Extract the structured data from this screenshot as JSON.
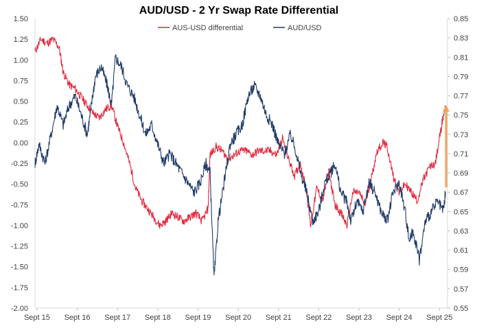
{
  "chart_data": {
    "type": "line",
    "title": "AUD/USD - 2 Yr Swap Rate Differential",
    "xlabel": "",
    "ylabel": "",
    "y2label": "",
    "x_ticks": [
      "Sept 15",
      "Sept 16",
      "Sept 17",
      "Sept 18",
      "Sept 19",
      "Sept 20",
      "Sept 21",
      "Sept 22",
      "Sept 23",
      "Sept 24",
      "Sept 25"
    ],
    "x_range": [
      2015.7,
      2025.95
    ],
    "ylim_left": [
      -2.0,
      1.5
    ],
    "left_ticks": [
      "1.50",
      "1.25",
      "1.00",
      "0.75",
      "0.50",
      "0.25",
      "0.00",
      "-0.25",
      "-0.50",
      "-0.75",
      "-1.00",
      "-1.25",
      "-1.50",
      "-1.75",
      "-2.00"
    ],
    "ylim_right": [
      0.55,
      0.85
    ],
    "right_ticks": [
      "0.85",
      "0.83",
      "0.81",
      "0.79",
      "0.77",
      "0.75",
      "0.73",
      "0.71",
      "0.69",
      "0.67",
      "0.65",
      "0.63",
      "0.61",
      "0.59",
      "0.57",
      "0.55"
    ],
    "legend_position": "top-center",
    "grid": false,
    "series": [
      {
        "name": "AUS-USD differential",
        "axis": "left",
        "color": "#e0283c",
        "x": [
          2015.7,
          2015.85,
          2016.0,
          2016.15,
          2016.3,
          2016.4,
          2016.55,
          2016.7,
          2016.85,
          2017.0,
          2017.15,
          2017.3,
          2017.45,
          2017.6,
          2017.75,
          2017.9,
          2018.05,
          2018.2,
          2018.35,
          2018.5,
          2018.65,
          2018.8,
          2018.95,
          2019.1,
          2019.25,
          2019.4,
          2019.55,
          2019.7,
          2019.85,
          2020.0,
          2020.05,
          2020.2,
          2020.35,
          2020.5,
          2020.65,
          2020.8,
          2020.95,
          2021.1,
          2021.25,
          2021.4,
          2021.55,
          2021.7,
          2021.85,
          2022.0,
          2022.15,
          2022.3,
          2022.45,
          2022.55,
          2022.7,
          2022.85,
          2023.0,
          2023.15,
          2023.3,
          2023.45,
          2023.6,
          2023.75,
          2023.9,
          2024.05,
          2024.2,
          2024.35,
          2024.45,
          2024.6,
          2024.75,
          2024.9,
          2025.05,
          2025.2,
          2025.35,
          2025.5,
          2025.65,
          2025.8,
          2025.9
        ],
        "values": [
          1.1,
          1.25,
          1.2,
          1.25,
          1.15,
          0.85,
          0.7,
          0.65,
          0.55,
          0.45,
          0.35,
          0.3,
          0.4,
          0.45,
          0.2,
          0.0,
          -0.25,
          -0.55,
          -0.7,
          -0.8,
          -0.9,
          -1.0,
          -0.95,
          -0.85,
          -0.9,
          -0.95,
          -0.9,
          -0.85,
          -0.95,
          -0.8,
          -0.15,
          -0.05,
          -0.1,
          -0.2,
          -0.15,
          -0.1,
          -0.1,
          -0.15,
          -0.1,
          -0.1,
          -0.1,
          -0.15,
          0.05,
          -0.2,
          -0.4,
          -0.25,
          -0.6,
          -1.0,
          -0.55,
          -0.7,
          -0.35,
          -0.75,
          -0.85,
          -1.0,
          -0.6,
          -0.6,
          -0.75,
          -0.45,
          -0.1,
          0.0,
          -0.05,
          -0.4,
          -0.6,
          -0.5,
          -0.6,
          -0.7,
          -0.45,
          -0.3,
          -0.25,
          0.2,
          0.45
        ]
      },
      {
        "name": "AUD/USD",
        "axis": "right",
        "color": "#1f3a68",
        "x": [
          2015.7,
          2015.8,
          2015.95,
          2016.1,
          2016.25,
          2016.4,
          2016.55,
          2016.7,
          2016.85,
          2017.0,
          2017.1,
          2017.2,
          2017.35,
          2017.5,
          2017.6,
          2017.7,
          2017.85,
          2018.0,
          2018.15,
          2018.3,
          2018.45,
          2018.6,
          2018.75,
          2018.9,
          2019.05,
          2019.2,
          2019.35,
          2019.5,
          2019.65,
          2019.8,
          2019.95,
          2020.05,
          2020.15,
          2020.25,
          2020.4,
          2020.55,
          2020.7,
          2020.85,
          2021.0,
          2021.15,
          2021.3,
          2021.45,
          2021.6,
          2021.75,
          2021.9,
          2022.05,
          2022.2,
          2022.3,
          2022.45,
          2022.6,
          2022.75,
          2022.9,
          2023.05,
          2023.15,
          2023.3,
          2023.45,
          2023.55,
          2023.7,
          2023.85,
          2024.0,
          2024.15,
          2024.3,
          2024.45,
          2024.6,
          2024.75,
          2024.9,
          2025.0,
          2025.1,
          2025.25,
          2025.4,
          2025.55,
          2025.7,
          2025.85,
          2025.9
        ],
        "values": [
          0.7,
          0.72,
          0.7,
          0.73,
          0.76,
          0.74,
          0.76,
          0.77,
          0.75,
          0.73,
          0.76,
          0.79,
          0.8,
          0.78,
          0.76,
          0.81,
          0.8,
          0.78,
          0.77,
          0.75,
          0.73,
          0.74,
          0.72,
          0.7,
          0.71,
          0.7,
          0.69,
          0.68,
          0.67,
          0.68,
          0.7,
          0.69,
          0.58,
          0.64,
          0.68,
          0.72,
          0.73,
          0.74,
          0.77,
          0.78,
          0.77,
          0.75,
          0.74,
          0.72,
          0.71,
          0.73,
          0.71,
          0.69,
          0.67,
          0.64,
          0.65,
          0.68,
          0.69,
          0.7,
          0.67,
          0.66,
          0.64,
          0.66,
          0.65,
          0.68,
          0.67,
          0.65,
          0.64,
          0.67,
          0.68,
          0.65,
          0.62,
          0.63,
          0.6,
          0.64,
          0.65,
          0.66,
          0.65,
          0.67
        ]
      }
    ],
    "annotations": [
      {
        "type": "arrow",
        "color": "#f4a354",
        "axis": "right",
        "x": 2025.95,
        "from": 0.675,
        "to": 0.76
      }
    ]
  }
}
